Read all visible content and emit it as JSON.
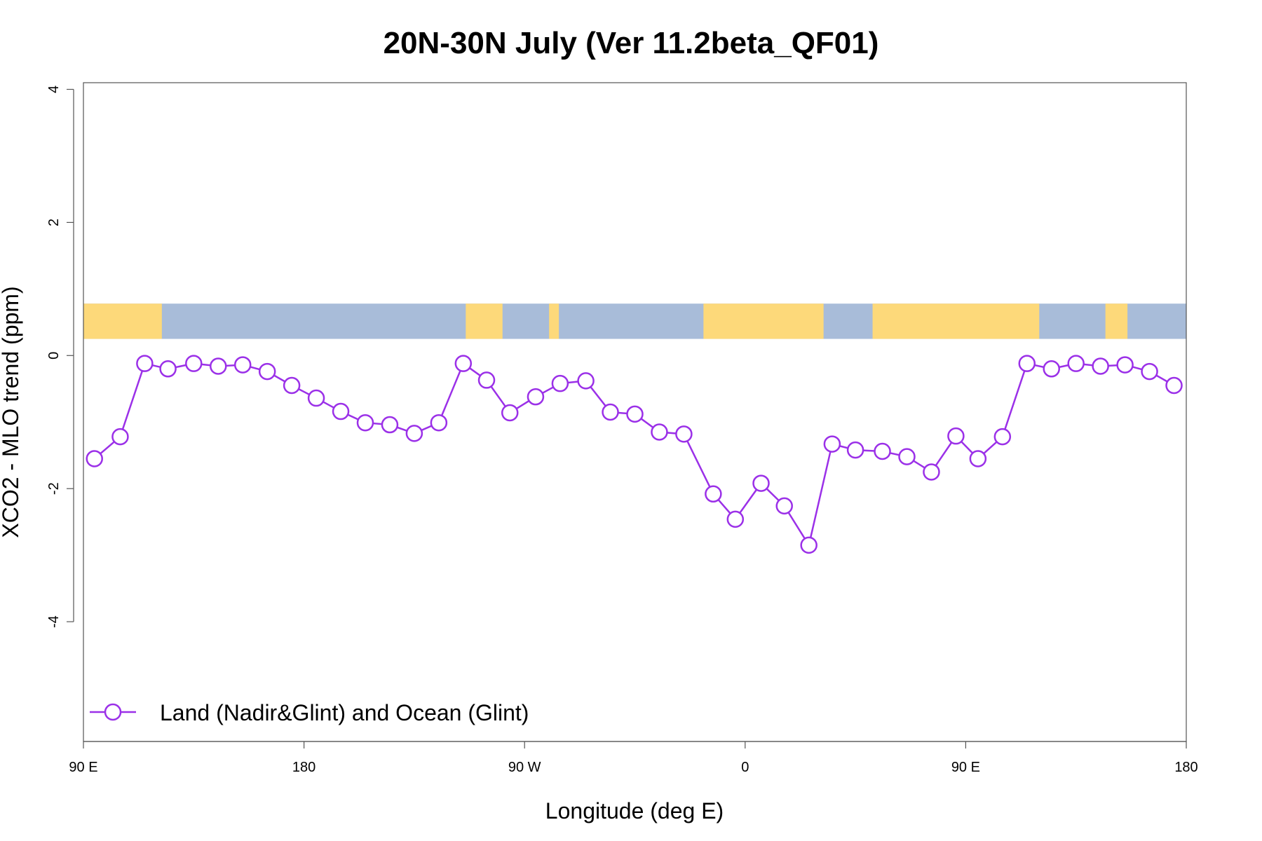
{
  "chart_data": {
    "type": "line",
    "title": "20N-30N July (Ver 11.2beta_QF01)",
    "xlabel": "Longitude (deg E)",
    "ylabel": "XCO2 - MLO trend (ppm)",
    "xlim": [
      90,
      540
    ],
    "ylim": [
      -5.8,
      4.1
    ],
    "x_ticks": [
      {
        "value": 90,
        "label": "90 E"
      },
      {
        "value": 180,
        "label": "180"
      },
      {
        "value": 270,
        "label": "90 W"
      },
      {
        "value": 360,
        "label": "0"
      },
      {
        "value": 450,
        "label": "90 E"
      },
      {
        "value": 540,
        "label": "180"
      }
    ],
    "y_ticks": [
      {
        "value": 4,
        "label": "4"
      },
      {
        "value": 2,
        "label": "2"
      },
      {
        "value": 0,
        "label": "0"
      },
      {
        "value": -2,
        "label": "-2"
      },
      {
        "value": -4,
        "label": "-4"
      }
    ],
    "legend": {
      "position": "bottom-left",
      "entries": [
        "Land (Nadir&Glint) and Ocean (Glint)"
      ]
    },
    "colors": {
      "series": "#9b30e8",
      "land": "#fdd97a",
      "ocean": "#a8bcd9",
      "frame": "#555555"
    },
    "map_strip": {
      "y_range": [
        0.25,
        0.78
      ],
      "land_bands": [
        [
          90,
          122
        ],
        [
          246,
          261
        ],
        [
          280,
          284
        ],
        [
          343,
          392
        ],
        [
          412,
          480
        ],
        [
          507,
          516
        ]
      ]
    },
    "series": [
      {
        "name": "Land (Nadir&Glint) and Ocean (Glint)",
        "x": [
          94.5,
          105,
          115,
          124.5,
          135,
          145,
          155,
          165,
          175,
          185,
          195,
          205,
          215,
          225,
          235,
          245,
          254.5,
          264,
          274.5,
          284.5,
          295,
          305,
          315,
          325,
          335,
          347,
          356,
          366.5,
          376,
          386,
          395.5,
          405,
          416,
          426,
          436,
          446,
          455,
          465,
          475,
          485,
          495,
          505,
          515,
          525,
          535
        ],
        "y": [
          -1.55,
          -1.22,
          -0.12,
          -0.2,
          -0.12,
          -0.16,
          -0.14,
          -0.24,
          -0.45,
          -0.64,
          -0.84,
          -1.01,
          -1.04,
          -1.17,
          -1.01,
          -0.12,
          -0.37,
          -0.86,
          -0.62,
          -0.42,
          -0.38,
          -0.85,
          -0.88,
          -1.15,
          -1.18,
          -2.08,
          -2.46,
          -1.92,
          -2.26,
          -2.85,
          -1.33,
          -1.42,
          -1.44,
          -1.52,
          -1.75,
          -1.21,
          -1.55,
          -1.22,
          -0.12,
          -0.2,
          -0.12,
          -0.16,
          -0.14,
          -0.24,
          -0.45
        ]
      }
    ]
  }
}
